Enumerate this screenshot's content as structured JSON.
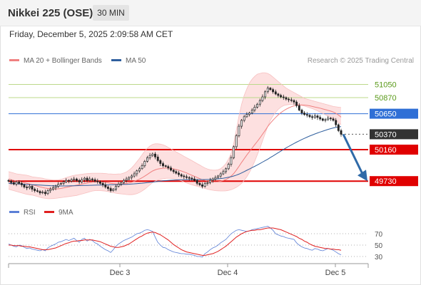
{
  "header": {
    "title": "Nikkei 225 (OSE)",
    "timeframe": "30 MIN"
  },
  "datetime": "Friday, December 5, 2025 2:09:58 AM CET",
  "legend": {
    "main": [
      {
        "label": "MA 20 + Bollinger Bands",
        "color": "#f08080"
      },
      {
        "label": "MA 50",
        "color": "#2f5f9e"
      }
    ],
    "rsi": [
      {
        "label": "RSI",
        "color": "#5b7fd6"
      },
      {
        "label": "9MA",
        "color": "#e02020"
      }
    ]
  },
  "credit": "Research © 2025 Trading Central",
  "chart_data": [
    {
      "type": "candlestick",
      "name": "price",
      "ylim": [
        49460,
        51230
      ],
      "levels": [
        {
          "label": "51050",
          "value": 51050,
          "kind": "resistance",
          "color": "#7ab02a"
        },
        {
          "label": "50870",
          "value": 50870,
          "kind": "resistance",
          "color": "#7ab02a"
        },
        {
          "label": "50650",
          "value": 50650,
          "kind": "pivot",
          "color": "#2f6fd6"
        },
        {
          "label": "50370",
          "value": 50370,
          "kind": "last",
          "color": "#333333"
        },
        {
          "label": "50160",
          "value": 50160,
          "kind": "support",
          "color": "#e00000"
        },
        {
          "label": "49730",
          "value": 49730,
          "kind": "support",
          "color": "#e00000"
        }
      ],
      "x_ticks": [
        "Dec 3",
        "Dec 4",
        "Dec 5"
      ],
      "close": [
        49730,
        49710,
        49690,
        49720,
        49700,
        49680,
        49650,
        49640,
        49660,
        49620,
        49600,
        49590,
        49570,
        49580,
        49560,
        49600,
        49620,
        49640,
        49660,
        49690,
        49700,
        49720,
        49740,
        49730,
        49750,
        49760,
        49740,
        49720,
        49750,
        49770,
        49740,
        49760,
        49750,
        49730,
        49720,
        49700,
        49680,
        49650,
        49630,
        49600,
        49620,
        49660,
        49690,
        49710,
        49740,
        49760,
        49780,
        49800,
        49830,
        49870,
        49900,
        49940,
        50000,
        50050,
        50080,
        50100,
        50060,
        50010,
        49970,
        49940,
        49930,
        49910,
        49880,
        49860,
        49840,
        49820,
        49800,
        49790,
        49780,
        49770,
        49760,
        49740,
        49700,
        49680,
        49660,
        49700,
        49710,
        49740,
        49760,
        49780,
        49800,
        49830,
        49860,
        49900,
        49960,
        50050,
        50200,
        50350,
        50480,
        50560,
        50610,
        50640,
        50660,
        50700,
        50740,
        50780,
        50830,
        50880,
        50950,
        51000,
        50980,
        50950,
        50920,
        50900,
        50880,
        50870,
        50850,
        50840,
        50830,
        50810,
        50760,
        50700,
        50660,
        50640,
        50630,
        50610,
        50600,
        50620,
        50600,
        50580,
        50560,
        50570,
        50590,
        50580,
        50560,
        50500,
        50420,
        50370
      ],
      "ma20": [
        49760,
        49750,
        49740,
        49730,
        49725,
        49718,
        49710,
        49700,
        49690,
        49680,
        49672,
        49662,
        49652,
        49643,
        49635,
        49630,
        49625,
        49622,
        49622,
        49625,
        49630,
        49637,
        49645,
        49652,
        49660,
        49668,
        49675,
        49682,
        49690,
        49698,
        49703,
        49710,
        49716,
        49718,
        49720,
        49720,
        49718,
        49714,
        49708,
        49700,
        49695,
        49692,
        49690,
        49690,
        49693,
        49698,
        49706,
        49715,
        49727,
        49742,
        49758,
        49776,
        49798,
        49822,
        49846,
        49868,
        49884,
        49896,
        49902,
        49906,
        49908,
        49908,
        49904,
        49898,
        49890,
        49880,
        49868,
        49856,
        49842,
        49826,
        49810,
        49796,
        49780,
        49764,
        49750,
        49740,
        49732,
        49726,
        49722,
        49720,
        49722,
        49728,
        49738,
        49752,
        49772,
        49798,
        49834,
        49880,
        49932,
        49986,
        50036,
        50086,
        50134,
        50180,
        50226,
        50272,
        50320,
        50370,
        50422,
        50476,
        50522,
        50562,
        50600,
        50634,
        50664,
        50690,
        50712,
        50730,
        50746,
        50758,
        50766,
        50770,
        50770,
        50768,
        50764,
        50758,
        50750,
        50742,
        50734,
        50726,
        50716,
        50706,
        50696,
        50686,
        50674,
        50656,
        50632,
        50604
      ],
      "bb_upper": [
        49860,
        49850,
        49840,
        49830,
        49825,
        49820,
        49815,
        49810,
        49800,
        49790,
        49785,
        49780,
        49775,
        49770,
        49760,
        49755,
        49750,
        49745,
        49745,
        49748,
        49755,
        49765,
        49778,
        49790,
        49800,
        49808,
        49815,
        49820,
        49825,
        49830,
        49832,
        49835,
        49838,
        49838,
        49838,
        49838,
        49836,
        49834,
        49830,
        49828,
        49826,
        49826,
        49828,
        49830,
        49840,
        49855,
        49880,
        49910,
        49950,
        49995,
        50040,
        50090,
        50140,
        50180,
        50210,
        50230,
        50240,
        50240,
        50235,
        50225,
        50210,
        50190,
        50170,
        50150,
        50130,
        50110,
        50090,
        50070,
        50050,
        50030,
        50010,
        49990,
        49970,
        49950,
        49930,
        49910,
        49895,
        49885,
        49880,
        49880,
        49885,
        49900,
        49930,
        49970,
        50030,
        50110,
        50250,
        50430,
        50620,
        50780,
        50900,
        50990,
        51070,
        51120,
        51160,
        51190,
        51200,
        51210,
        51210,
        51200,
        51180,
        51150,
        51120,
        51090,
        51060,
        51030,
        51000,
        50980,
        50960,
        50940,
        50920,
        50900,
        50880,
        50860,
        50850,
        50840,
        50830,
        50820,
        50810,
        50800,
        50790,
        50780,
        50770,
        50760,
        50750,
        50745,
        50740,
        50735
      ],
      "bb_lower": [
        49620,
        49610,
        49600,
        49590,
        49580,
        49570,
        49560,
        49550,
        49545,
        49540,
        49530,
        49520,
        49510,
        49500,
        49495,
        49490,
        49490,
        49492,
        49495,
        49500,
        49505,
        49510,
        49515,
        49520,
        49525,
        49530,
        49535,
        49545,
        49555,
        49565,
        49575,
        49585,
        49595,
        49600,
        49602,
        49600,
        49598,
        49594,
        49588,
        49580,
        49572,
        49566,
        49560,
        49556,
        49552,
        49548,
        49546,
        49546,
        49550,
        49560,
        49575,
        49595,
        49620,
        49650,
        49680,
        49710,
        49730,
        49745,
        49755,
        49762,
        49768,
        49770,
        49768,
        49764,
        49756,
        49746,
        49734,
        49720,
        49706,
        49692,
        49680,
        49670,
        49660,
        49650,
        49640,
        49630,
        49620,
        49612,
        49606,
        49600,
        49598,
        49596,
        49596,
        49598,
        49604,
        49614,
        49628,
        49646,
        49670,
        49700,
        49740,
        49790,
        49850,
        49920,
        50000,
        50090,
        50180,
        50280,
        50380,
        50480,
        50560,
        50620,
        50670,
        50710,
        50740,
        50760,
        50770,
        50775,
        50778,
        50778,
        50775,
        50770,
        50762,
        50754,
        50744,
        50732,
        50720,
        50706,
        50690,
        50672,
        50654,
        50636,
        50618,
        50600,
        50578,
        50556,
        50530,
        50500
      ],
      "ma50": [
        49700,
        49698,
        49696,
        49694,
        49692,
        49690,
        49688,
        49686,
        49684,
        49682,
        49680,
        49678,
        49676,
        49674,
        49672,
        49670,
        49668,
        49667,
        49666,
        49665,
        49664,
        49664,
        49664,
        49665,
        49666,
        49667,
        49668,
        49669,
        49670,
        49671,
        49672,
        49673,
        49674,
        49675,
        49676,
        49677,
        49678,
        49679,
        49680,
        49681,
        49682,
        49683,
        49684,
        49685,
        49686,
        49687,
        49689,
        49691,
        49693,
        49696,
        49699,
        49702,
        49706,
        49710,
        49714,
        49718,
        49722,
        49726,
        49730,
        49734,
        49737,
        49740,
        49742,
        49744,
        49746,
        49748,
        49749,
        49750,
        49751,
        49752,
        49752,
        49752,
        49752,
        49752,
        49752,
        49752,
        49753,
        49754,
        49756,
        49758,
        49761,
        49765,
        49770,
        49776,
        49783,
        49791,
        49800,
        49812,
        49826,
        49842,
        49860,
        49878,
        49896,
        49914,
        49932,
        49950,
        49970,
        49990,
        50010,
        50030,
        50052,
        50074,
        50096,
        50118,
        50140,
        50162,
        50184,
        50204,
        50224,
        50244,
        50262,
        50280,
        50298,
        50314,
        50330,
        50346,
        50360,
        50374,
        50388,
        50400,
        50412,
        50424,
        50436,
        50446,
        50456,
        50464,
        50470,
        50474
      ]
    },
    {
      "type": "line",
      "name": "rsi",
      "ylim": [
        20,
        90
      ],
      "y_ticks": [
        70,
        50,
        30
      ],
      "series": [
        {
          "name": "RSI",
          "values": [
            52,
            50,
            48,
            47,
            50,
            49,
            46,
            44,
            45,
            43,
            42,
            41,
            40,
            42,
            40,
            45,
            48,
            50,
            52,
            55,
            56,
            58,
            60,
            58,
            60,
            62,
            58,
            55,
            60,
            62,
            57,
            60,
            58,
            54,
            52,
            48,
            45,
            42,
            40,
            37,
            42,
            48,
            52,
            55,
            58,
            60,
            62,
            64,
            67,
            70,
            71,
            73,
            76,
            77,
            76,
            74,
            64,
            55,
            50,
            46,
            45,
            42,
            40,
            38,
            37,
            36,
            35,
            35,
            34,
            34,
            33,
            32,
            30,
            30,
            29,
            35,
            38,
            42,
            45,
            47,
            50,
            54,
            57,
            60,
            65,
            70,
            73,
            76,
            77,
            76,
            75,
            74,
            75,
            77,
            78,
            79,
            80,
            81,
            82,
            83,
            80,
            76,
            70,
            68,
            66,
            65,
            63,
            62,
            61,
            60,
            54,
            50,
            47,
            45,
            44,
            42,
            41,
            44,
            43,
            41,
            40,
            42,
            44,
            43,
            41,
            38,
            35,
            33
          ]
        },
        {
          "name": "9MA",
          "values": [
            50,
            50,
            49,
            49,
            49,
            48,
            48,
            47,
            47,
            46,
            45,
            44,
            43,
            42,
            42,
            42,
            43,
            44,
            45,
            47,
            49,
            51,
            53,
            54,
            56,
            57,
            57,
            58,
            58,
            59,
            59,
            59,
            59,
            58,
            57,
            56,
            54,
            52,
            50,
            48,
            47,
            46,
            46,
            47,
            48,
            50,
            52,
            55,
            58,
            61,
            64,
            66,
            69,
            71,
            72,
            73,
            72,
            70,
            68,
            65,
            62,
            59,
            55,
            51,
            48,
            45,
            42,
            40,
            38,
            37,
            36,
            35,
            34,
            33,
            32,
            32,
            33,
            34,
            35,
            37,
            39,
            42,
            45,
            48,
            52,
            56,
            60,
            64,
            67,
            70,
            72,
            74,
            75,
            76,
            76,
            77,
            77,
            78,
            79,
            80,
            80,
            80,
            79,
            78,
            77,
            75,
            73,
            71,
            69,
            67,
            65,
            62,
            60,
            57,
            55,
            52,
            50,
            48,
            47,
            46,
            45,
            44,
            44,
            43,
            43,
            42,
            42,
            41
          ]
        }
      ]
    }
  ]
}
